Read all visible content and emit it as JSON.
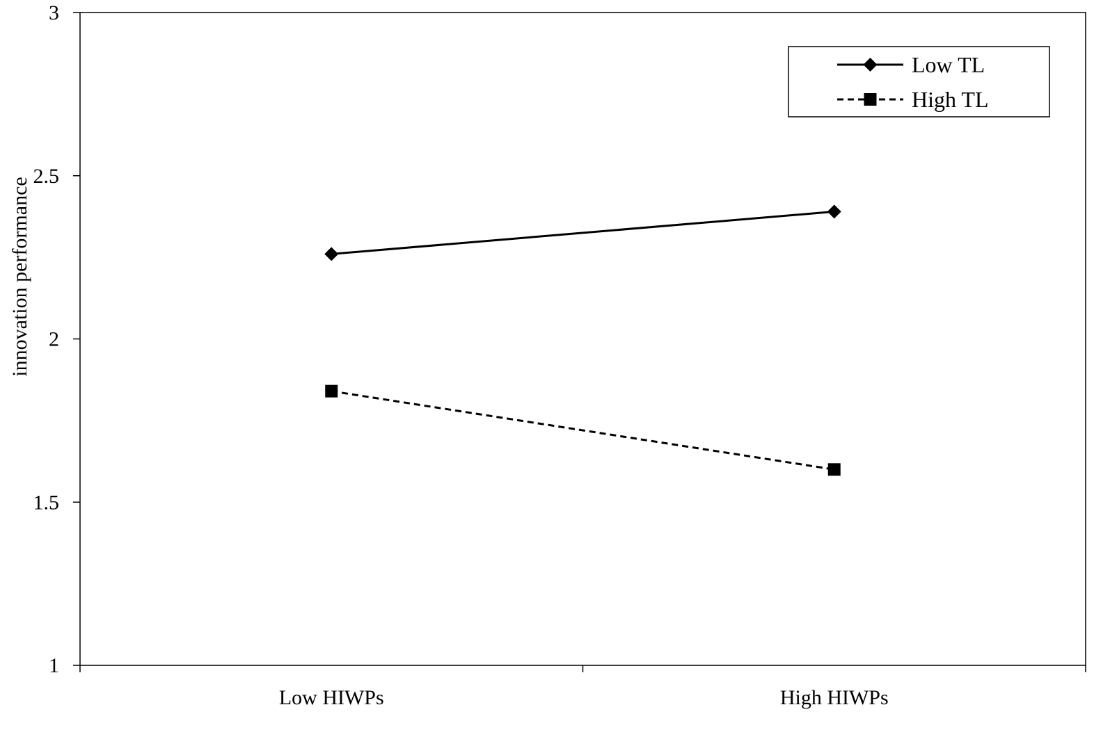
{
  "chart_data": {
    "type": "line",
    "categories": [
      "Low HIWPs",
      "High HIWPs"
    ],
    "series": [
      {
        "name": "Low TL",
        "values": [
          2.26,
          2.39
        ],
        "line_style": "solid",
        "marker": "diamond",
        "color": "#000000"
      },
      {
        "name": "High TL",
        "values": [
          1.84,
          1.6
        ],
        "line_style": "dashed",
        "marker": "square",
        "color": "#000000"
      }
    ],
    "title": "",
    "xlabel": "",
    "ylabel": "innovation performance",
    "ylim": [
      1,
      3
    ],
    "yticks": [
      "1",
      "1.5",
      "2",
      "2.5",
      "3"
    ],
    "grid": false,
    "legend_position": "top-right"
  }
}
